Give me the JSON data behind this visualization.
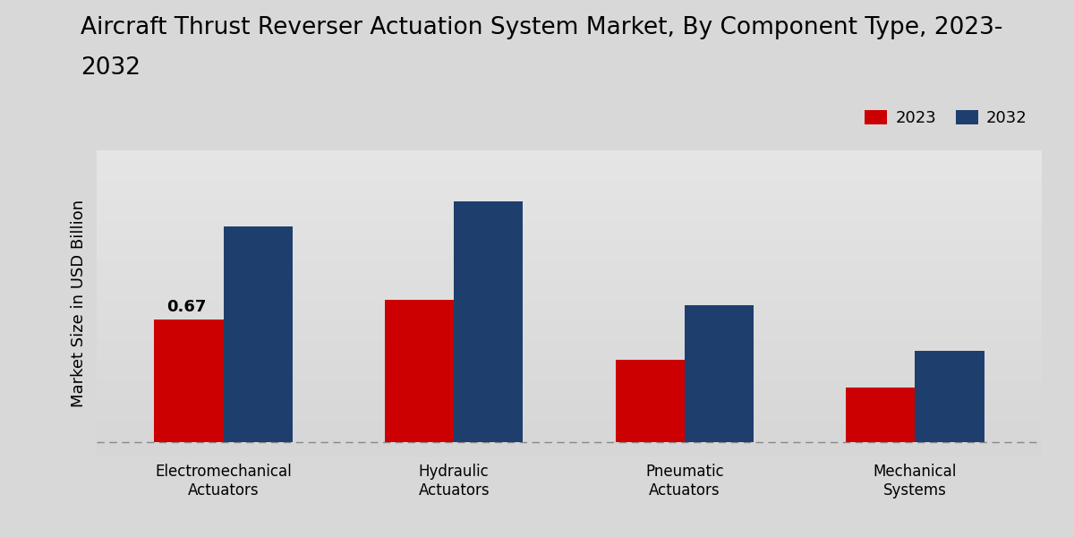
{
  "title_line1": "Aircraft Thrust Reverser Actuation System Market, By Component Type, 2023-",
  "title_line2": "2032",
  "ylabel": "Market Size in USD Billion",
  "categories": [
    "Electromechanical\nActuators",
    "Hydraulic\nActuators",
    "Pneumatic\nActuators",
    "Mechanical\nSystems"
  ],
  "values_2023": [
    0.67,
    0.78,
    0.45,
    0.3
  ],
  "values_2032": [
    1.18,
    1.32,
    0.75,
    0.5
  ],
  "color_2023": "#cc0000",
  "color_2032": "#1e3f6e",
  "annotation_label": "0.67",
  "annotation_category_idx": 0,
  "legend_labels": [
    "2023",
    "2032"
  ],
  "bar_width": 0.3,
  "title_fontsize": 19,
  "ylabel_fontsize": 13,
  "tick_fontsize": 12,
  "legend_fontsize": 13,
  "annotation_fontsize": 13,
  "ylim_max": 1.6
}
